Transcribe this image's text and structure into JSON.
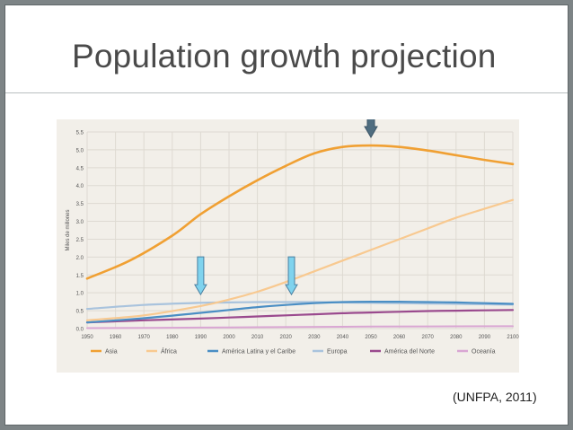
{
  "slide": {
    "title": "Population growth projection",
    "citation": "(UNFPA, 2011)"
  },
  "colors": {
    "background": "#7d8486",
    "panel": "#f2efe9",
    "grid": "#dedad2"
  },
  "chart_data": {
    "type": "line",
    "title": "",
    "xlabel": "",
    "ylabel": "Miles de millones",
    "xlim": [
      1950,
      2100
    ],
    "ylim": [
      0,
      5.5
    ],
    "x_ticks": [
      "1950",
      "1960",
      "1970",
      "1980",
      "1990",
      "2000",
      "2010",
      "2020",
      "2030",
      "2040",
      "2050",
      "2060",
      "2070",
      "2080",
      "2090",
      "2100"
    ],
    "y_ticks": [
      "0.0",
      "0.5",
      "1.0",
      "1.5",
      "2.0",
      "2.5",
      "3.0",
      "3.5",
      "4.0",
      "4.5",
      "5.0",
      "5.5"
    ],
    "grid": true,
    "legend_position": "bottom",
    "series": [
      {
        "name": "Asia",
        "color": "#f0a033",
        "width": 2.6,
        "x": [
          1950,
          1965,
          1980,
          1990,
          2000,
          2010,
          2020,
          2030,
          2040,
          2050,
          2060,
          2070,
          2080,
          2090,
          2100
        ],
        "y": [
          1.4,
          1.9,
          2.6,
          3.2,
          3.7,
          4.15,
          4.55,
          4.9,
          5.08,
          5.12,
          5.08,
          4.98,
          4.85,
          4.72,
          4.6
        ]
      },
      {
        "name": "África",
        "color": "#f8c990",
        "width": 2.2,
        "x": [
          1950,
          1970,
          1990,
          2000,
          2010,
          2020,
          2030,
          2040,
          2050,
          2060,
          2070,
          2080,
          2090,
          2100
        ],
        "y": [
          0.23,
          0.37,
          0.63,
          0.81,
          1.03,
          1.3,
          1.6,
          1.9,
          2.2,
          2.5,
          2.8,
          3.1,
          3.35,
          3.6
        ]
      },
      {
        "name": "América Latina y el Caribe",
        "color": "#4a8ec4",
        "width": 2.2,
        "x": [
          1950,
          1970,
          1990,
          2000,
          2010,
          2020,
          2030,
          2040,
          2050,
          2060,
          2070,
          2080,
          2090,
          2100
        ],
        "y": [
          0.17,
          0.29,
          0.44,
          0.52,
          0.6,
          0.66,
          0.71,
          0.74,
          0.75,
          0.75,
          0.74,
          0.73,
          0.71,
          0.69
        ]
      },
      {
        "name": "Europa",
        "color": "#a9c3dd",
        "width": 2.2,
        "x": [
          1950,
          1970,
          1990,
          2000,
          2010,
          2020,
          2030,
          2040,
          2050,
          2060,
          2070,
          2080,
          2090,
          2100
        ],
        "y": [
          0.55,
          0.66,
          0.72,
          0.73,
          0.74,
          0.74,
          0.74,
          0.73,
          0.72,
          0.71,
          0.7,
          0.69,
          0.68,
          0.67
        ]
      },
      {
        "name": "América del Norte",
        "color": "#9a4a8e",
        "width": 2.2,
        "x": [
          1950,
          1970,
          1990,
          2000,
          2010,
          2020,
          2030,
          2040,
          2050,
          2060,
          2070,
          2080,
          2090,
          2100
        ],
        "y": [
          0.17,
          0.23,
          0.28,
          0.31,
          0.34,
          0.37,
          0.4,
          0.43,
          0.45,
          0.47,
          0.49,
          0.5,
          0.51,
          0.52
        ]
      },
      {
        "name": "Oceanía",
        "color": "#d9a6d3",
        "width": 2.0,
        "x": [
          1950,
          1990,
          2010,
          2050,
          2100
        ],
        "y": [
          0.013,
          0.027,
          0.037,
          0.055,
          0.066
        ]
      }
    ],
    "annotations": [
      {
        "type": "arrow",
        "x": 2050,
        "y": 5.35,
        "color": "#4f6d80",
        "label": ""
      },
      {
        "type": "arrow",
        "x": 1990,
        "y": 0.95,
        "color": "#7fd3ee",
        "label": ""
      },
      {
        "type": "arrow",
        "x": 2022,
        "y": 0.95,
        "color": "#7fd3ee",
        "label": ""
      }
    ]
  }
}
